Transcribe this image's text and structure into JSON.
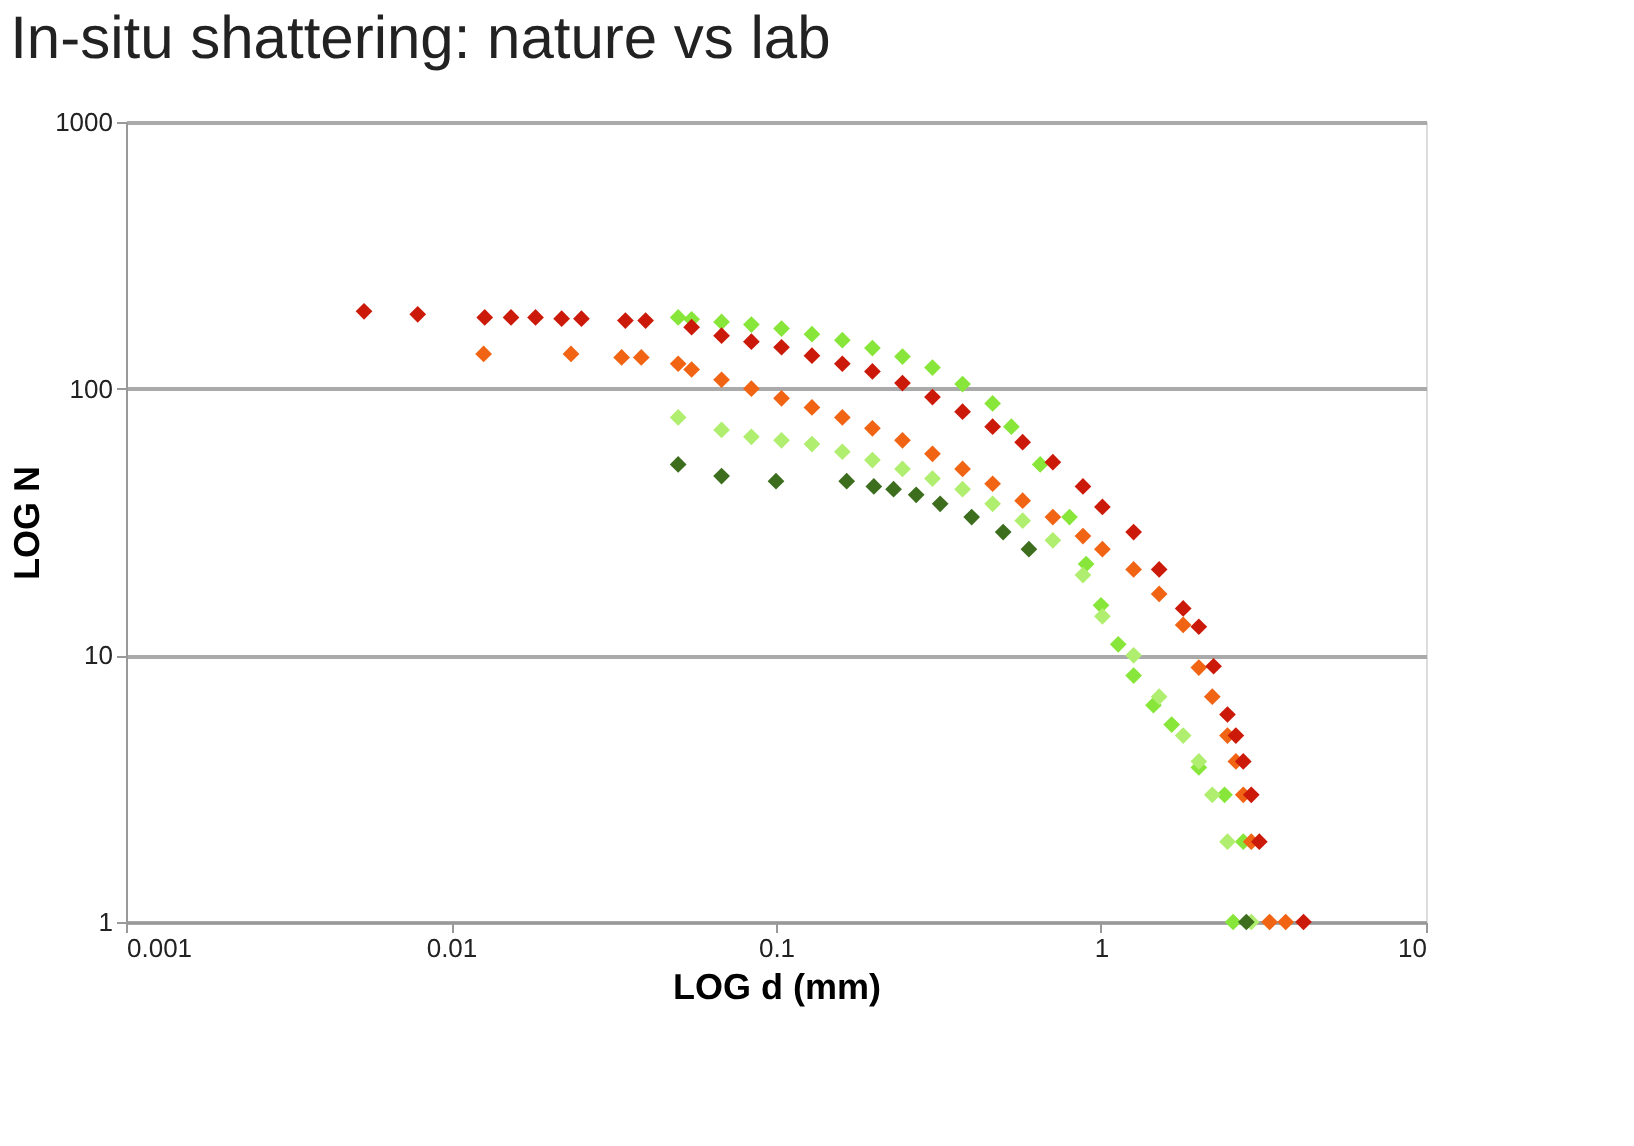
{
  "chart_data": {
    "type": "scatter",
    "title": "In-situ shattering: nature vs lab",
    "xlabel": "LOG d (mm)",
    "ylabel": "LOG N",
    "log": "xy",
    "xlim": [
      0.001,
      10
    ],
    "ylim": [
      1,
      1000
    ],
    "xticks": [
      0.001,
      0.01,
      0.1,
      1,
      10
    ],
    "yticks": [
      1,
      10,
      100,
      1000
    ],
    "grid": "y",
    "legend": false,
    "marker": "diamond",
    "series": [
      {
        "color": "#88e63a",
        "x": [
          0.05,
          0.055,
          0.068,
          0.084,
          0.104,
          0.129,
          0.16,
          0.198,
          0.245,
          0.303,
          0.375,
          0.464,
          0.53,
          0.65,
          0.8,
          0.9,
          1.0,
          1.13,
          1.26,
          1.45,
          1.65,
          2.0,
          2.4,
          2.74,
          2.55
        ],
        "values": [
          185,
          182,
          178,
          174,
          168,
          160,
          152,
          142,
          132,
          120,
          104,
          88,
          72,
          52,
          33,
          22,
          15.4,
          11,
          8.4,
          6.5,
          5.5,
          3.8,
          3,
          2,
          1
        ]
      },
      {
        "color": "#b0ee70",
        "x": [
          0.05,
          0.068,
          0.084,
          0.104,
          0.129,
          0.16,
          0.198,
          0.245,
          0.303,
          0.375,
          0.464,
          0.574,
          0.711,
          0.88,
          1.01,
          1.26,
          1.51,
          1.79,
          2.0,
          2.2,
          2.45,
          2.9
        ],
        "values": [
          78,
          70,
          66,
          64,
          62,
          58,
          54,
          50,
          46,
          42,
          37,
          32,
          27,
          20,
          14,
          10,
          7,
          5,
          4,
          3,
          2,
          1
        ]
      },
      {
        "color": "#3c6e1e",
        "x": [
          0.05,
          0.068,
          0.1,
          0.165,
          0.2,
          0.23,
          0.27,
          0.32,
          0.4,
          0.5,
          0.6,
          2.8
        ],
        "values": [
          52,
          47,
          45,
          45,
          43,
          42,
          40,
          37,
          33,
          29,
          25,
          1
        ]
      },
      {
        "color": "#f06414",
        "x": [
          0.0126,
          0.0234,
          0.0335,
          0.0385,
          0.05,
          0.055,
          0.068,
          0.084,
          0.104,
          0.129,
          0.16,
          0.198,
          0.245,
          0.303,
          0.375,
          0.464,
          0.574,
          0.711,
          0.88,
          1.01,
          1.26,
          1.51,
          1.79,
          2.0,
          2.2,
          2.45,
          2.6,
          2.74,
          2.9,
          3.3,
          3.7
        ],
        "values": [
          135,
          135,
          131,
          131,
          124,
          118,
          108,
          100,
          92,
          85,
          78,
          71,
          64,
          57,
          50,
          44,
          38,
          33,
          28,
          25,
          21,
          17,
          13,
          9,
          7,
          5,
          4,
          3,
          2,
          1,
          1
        ]
      },
      {
        "color": "#cc1a0a",
        "x": [
          0.0054,
          0.0079,
          0.0127,
          0.0153,
          0.0182,
          0.0219,
          0.0252,
          0.0344,
          0.0397,
          0.055,
          0.068,
          0.084,
          0.104,
          0.129,
          0.16,
          0.198,
          0.245,
          0.303,
          0.375,
          0.464,
          0.574,
          0.711,
          0.88,
          1.01,
          1.26,
          1.51,
          1.79,
          2.0,
          2.22,
          2.45,
          2.6,
          2.74,
          2.9,
          3.07,
          4.2
        ],
        "values": [
          195,
          190,
          185,
          185,
          185,
          183,
          183,
          180,
          180,
          170,
          158,
          150,
          143,
          133,
          124,
          116,
          105,
          93,
          82,
          72,
          63,
          53,
          43,
          36,
          29,
          21,
          15,
          12.8,
          9.1,
          6,
          5,
          4,
          3,
          2,
          1
        ]
      }
    ]
  }
}
